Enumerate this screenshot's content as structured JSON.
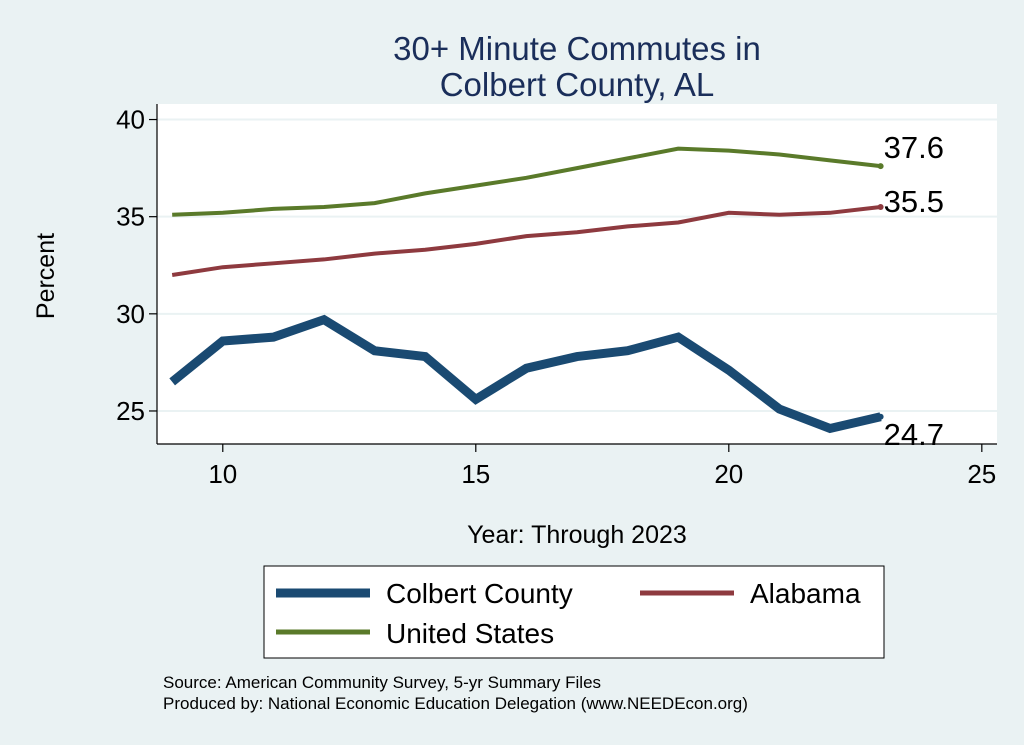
{
  "chart_data": {
    "type": "line",
    "title": [
      "30+ Minute Commutes in",
      "Colbert County, AL"
    ],
    "xlabel": "Year: Through 2023",
    "ylabel": "Percent",
    "xlim": [
      8.7,
      25.3
    ],
    "ylim": [
      23.3,
      40.8
    ],
    "xticks": [
      10,
      15,
      20,
      25
    ],
    "yticks": [
      25,
      30,
      35,
      40
    ],
    "grid": true,
    "x": [
      9,
      10,
      11,
      12,
      13,
      14,
      15,
      16,
      17,
      18,
      19,
      20,
      21,
      22,
      23
    ],
    "series": [
      {
        "name": "Colbert County",
        "color": "#1a4a72",
        "values": [
          26.5,
          28.6,
          28.8,
          29.7,
          28.1,
          27.8,
          25.6,
          27.2,
          27.8,
          28.1,
          28.8,
          27.1,
          25.1,
          24.1,
          24.7
        ],
        "end_label": "24.7"
      },
      {
        "name": "Alabama",
        "color": "#8e3a3f",
        "values": [
          32.0,
          32.4,
          32.6,
          32.8,
          33.1,
          33.3,
          33.6,
          34.0,
          34.2,
          34.5,
          34.7,
          35.2,
          35.1,
          35.2,
          35.5
        ],
        "end_label": "35.5"
      },
      {
        "name": "United States",
        "color": "#5a7a2a",
        "values": [
          35.1,
          35.2,
          35.4,
          35.5,
          35.7,
          36.2,
          36.6,
          37.0,
          37.5,
          38.0,
          38.5,
          38.4,
          38.2,
          37.9,
          37.6
        ],
        "end_label": "37.6"
      }
    ],
    "legend": {
      "placement": "bottom",
      "items": [
        "Colbert County",
        "Alabama",
        "United States"
      ]
    }
  },
  "source": {
    "line1": "Source: American Community Survey, 5-yr Summary Files",
    "line2": "Produced by: National Economic Education Delegation (www.NEEDEcon.org)"
  }
}
